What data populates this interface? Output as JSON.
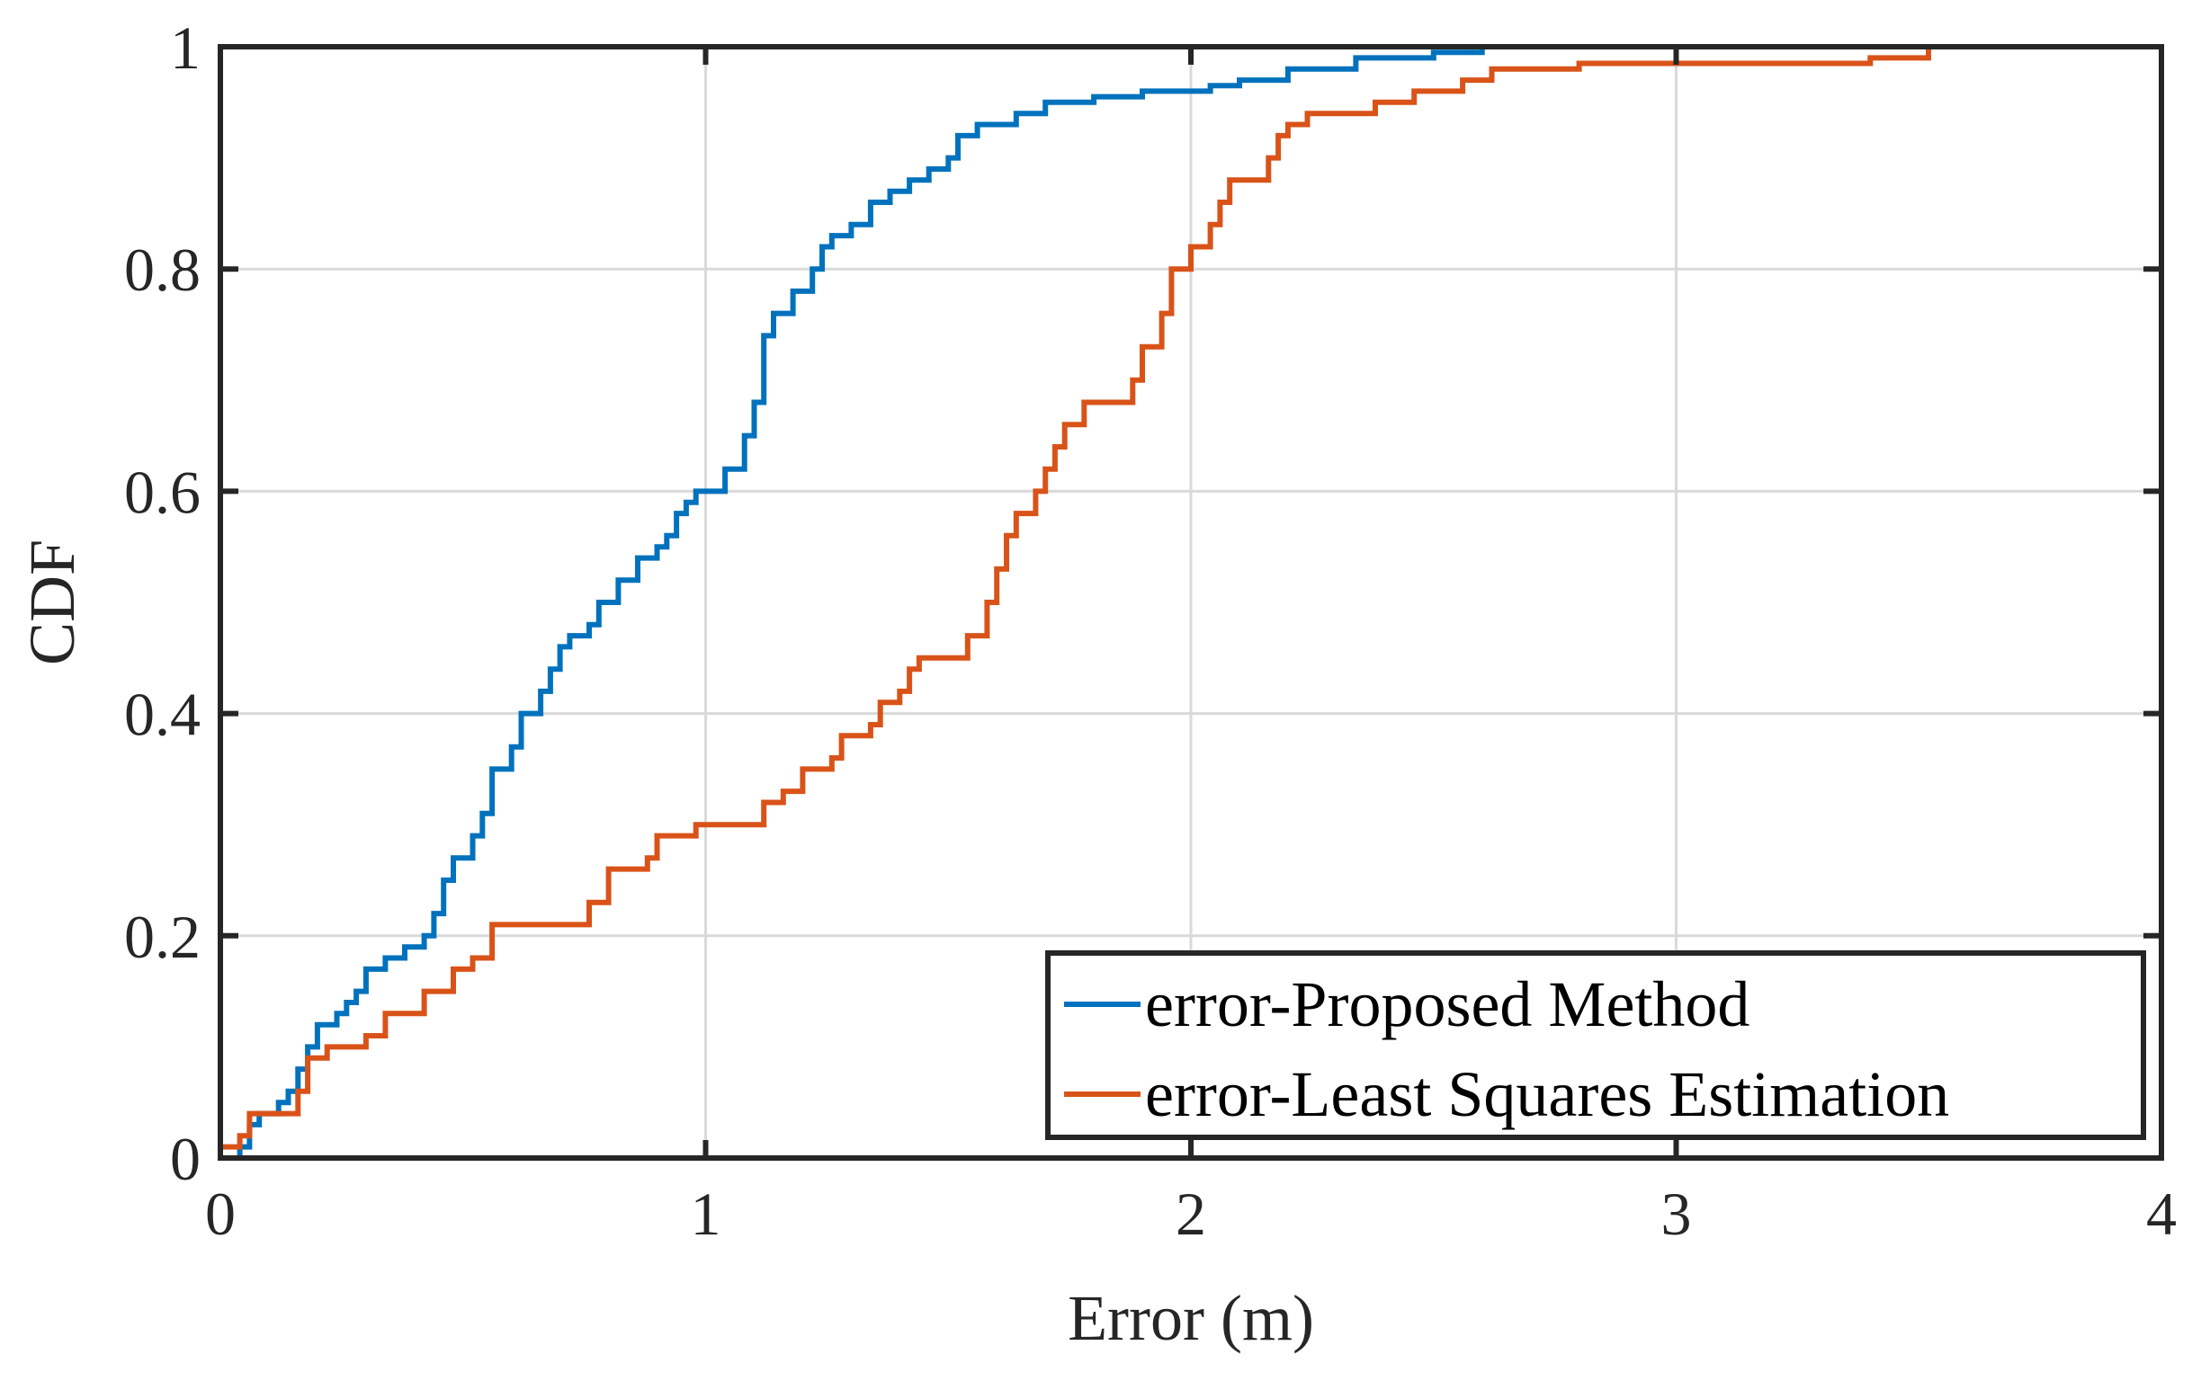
{
  "chart_data": {
    "type": "line",
    "title": "",
    "xlabel": "Error (m)",
    "ylabel": "CDF",
    "xlim": [
      0,
      4
    ],
    "ylim": [
      0,
      1
    ],
    "xticks": [
      0,
      1,
      2,
      3,
      4
    ],
    "xtick_labels": [
      "0",
      "1",
      "2",
      "3",
      "4"
    ],
    "yticks": [
      0,
      0.2,
      0.4,
      0.6,
      0.8,
      1
    ],
    "ytick_labels": [
      "0",
      "0.2",
      "0.4",
      "0.6",
      "0.8",
      "1"
    ],
    "grid": true,
    "legend_position": "bottom-right",
    "series": [
      {
        "name": "error-Proposed Method",
        "color": "#0072BD",
        "step": true,
        "points": [
          [
            0,
            0
          ],
          [
            0.02,
            0
          ],
          [
            0.04,
            0.01
          ],
          [
            0.06,
            0.03
          ],
          [
            0.08,
            0.04
          ],
          [
            0.1,
            0.04
          ],
          [
            0.12,
            0.05
          ],
          [
            0.14,
            0.06
          ],
          [
            0.16,
            0.08
          ],
          [
            0.18,
            0.1
          ],
          [
            0.2,
            0.12
          ],
          [
            0.24,
            0.13
          ],
          [
            0.26,
            0.14
          ],
          [
            0.28,
            0.15
          ],
          [
            0.3,
            0.17
          ],
          [
            0.34,
            0.18
          ],
          [
            0.38,
            0.19
          ],
          [
            0.42,
            0.2
          ],
          [
            0.44,
            0.22
          ],
          [
            0.46,
            0.25
          ],
          [
            0.48,
            0.27
          ],
          [
            0.52,
            0.29
          ],
          [
            0.54,
            0.31
          ],
          [
            0.56,
            0.35
          ],
          [
            0.6,
            0.37
          ],
          [
            0.62,
            0.4
          ],
          [
            0.66,
            0.42
          ],
          [
            0.68,
            0.44
          ],
          [
            0.7,
            0.46
          ],
          [
            0.72,
            0.47
          ],
          [
            0.76,
            0.48
          ],
          [
            0.78,
            0.5
          ],
          [
            0.82,
            0.52
          ],
          [
            0.86,
            0.54
          ],
          [
            0.9,
            0.55
          ],
          [
            0.92,
            0.56
          ],
          [
            0.94,
            0.58
          ],
          [
            0.96,
            0.59
          ],
          [
            0.98,
            0.6
          ],
          [
            1.04,
            0.62
          ],
          [
            1.08,
            0.65
          ],
          [
            1.1,
            0.68
          ],
          [
            1.12,
            0.74
          ],
          [
            1.14,
            0.76
          ],
          [
            1.18,
            0.78
          ],
          [
            1.22,
            0.8
          ],
          [
            1.24,
            0.82
          ],
          [
            1.26,
            0.83
          ],
          [
            1.3,
            0.84
          ],
          [
            1.34,
            0.86
          ],
          [
            1.38,
            0.87
          ],
          [
            1.42,
            0.88
          ],
          [
            1.46,
            0.89
          ],
          [
            1.5,
            0.9
          ],
          [
            1.52,
            0.92
          ],
          [
            1.56,
            0.93
          ],
          [
            1.64,
            0.94
          ],
          [
            1.7,
            0.95
          ],
          [
            1.8,
            0.955
          ],
          [
            1.9,
            0.96
          ],
          [
            2.04,
            0.965
          ],
          [
            2.1,
            0.97
          ],
          [
            2.2,
            0.98
          ],
          [
            2.34,
            0.99
          ],
          [
            2.5,
            0.995
          ],
          [
            2.6,
            1.0
          ],
          [
            2.75,
            1.0
          ]
        ]
      },
      {
        "name": "error-Least Squares Estimation",
        "color": "#D95319",
        "step": true,
        "points": [
          [
            0,
            0.01
          ],
          [
            0.04,
            0.02
          ],
          [
            0.06,
            0.04
          ],
          [
            0.16,
            0.06
          ],
          [
            0.18,
            0.09
          ],
          [
            0.22,
            0.1
          ],
          [
            0.3,
            0.11
          ],
          [
            0.34,
            0.13
          ],
          [
            0.42,
            0.15
          ],
          [
            0.48,
            0.17
          ],
          [
            0.52,
            0.18
          ],
          [
            0.56,
            0.21
          ],
          [
            0.76,
            0.23
          ],
          [
            0.8,
            0.26
          ],
          [
            0.88,
            0.27
          ],
          [
            0.9,
            0.29
          ],
          [
            0.98,
            0.3
          ],
          [
            1.12,
            0.32
          ],
          [
            1.16,
            0.33
          ],
          [
            1.2,
            0.35
          ],
          [
            1.26,
            0.36
          ],
          [
            1.28,
            0.38
          ],
          [
            1.34,
            0.39
          ],
          [
            1.36,
            0.41
          ],
          [
            1.4,
            0.42
          ],
          [
            1.42,
            0.44
          ],
          [
            1.44,
            0.45
          ],
          [
            1.54,
            0.47
          ],
          [
            1.58,
            0.5
          ],
          [
            1.6,
            0.53
          ],
          [
            1.62,
            0.56
          ],
          [
            1.64,
            0.58
          ],
          [
            1.68,
            0.6
          ],
          [
            1.7,
            0.62
          ],
          [
            1.72,
            0.64
          ],
          [
            1.74,
            0.66
          ],
          [
            1.78,
            0.68
          ],
          [
            1.88,
            0.7
          ],
          [
            1.9,
            0.73
          ],
          [
            1.94,
            0.76
          ],
          [
            1.96,
            0.8
          ],
          [
            2.0,
            0.82
          ],
          [
            2.04,
            0.84
          ],
          [
            2.06,
            0.86
          ],
          [
            2.08,
            0.88
          ],
          [
            2.16,
            0.9
          ],
          [
            2.18,
            0.92
          ],
          [
            2.2,
            0.93
          ],
          [
            2.24,
            0.94
          ],
          [
            2.38,
            0.95
          ],
          [
            2.46,
            0.96
          ],
          [
            2.56,
            0.97
          ],
          [
            2.62,
            0.98
          ],
          [
            2.8,
            0.985
          ],
          [
            3.4,
            0.99
          ],
          [
            3.52,
            1.0
          ],
          [
            3.53,
            1.0
          ]
        ]
      }
    ]
  }
}
